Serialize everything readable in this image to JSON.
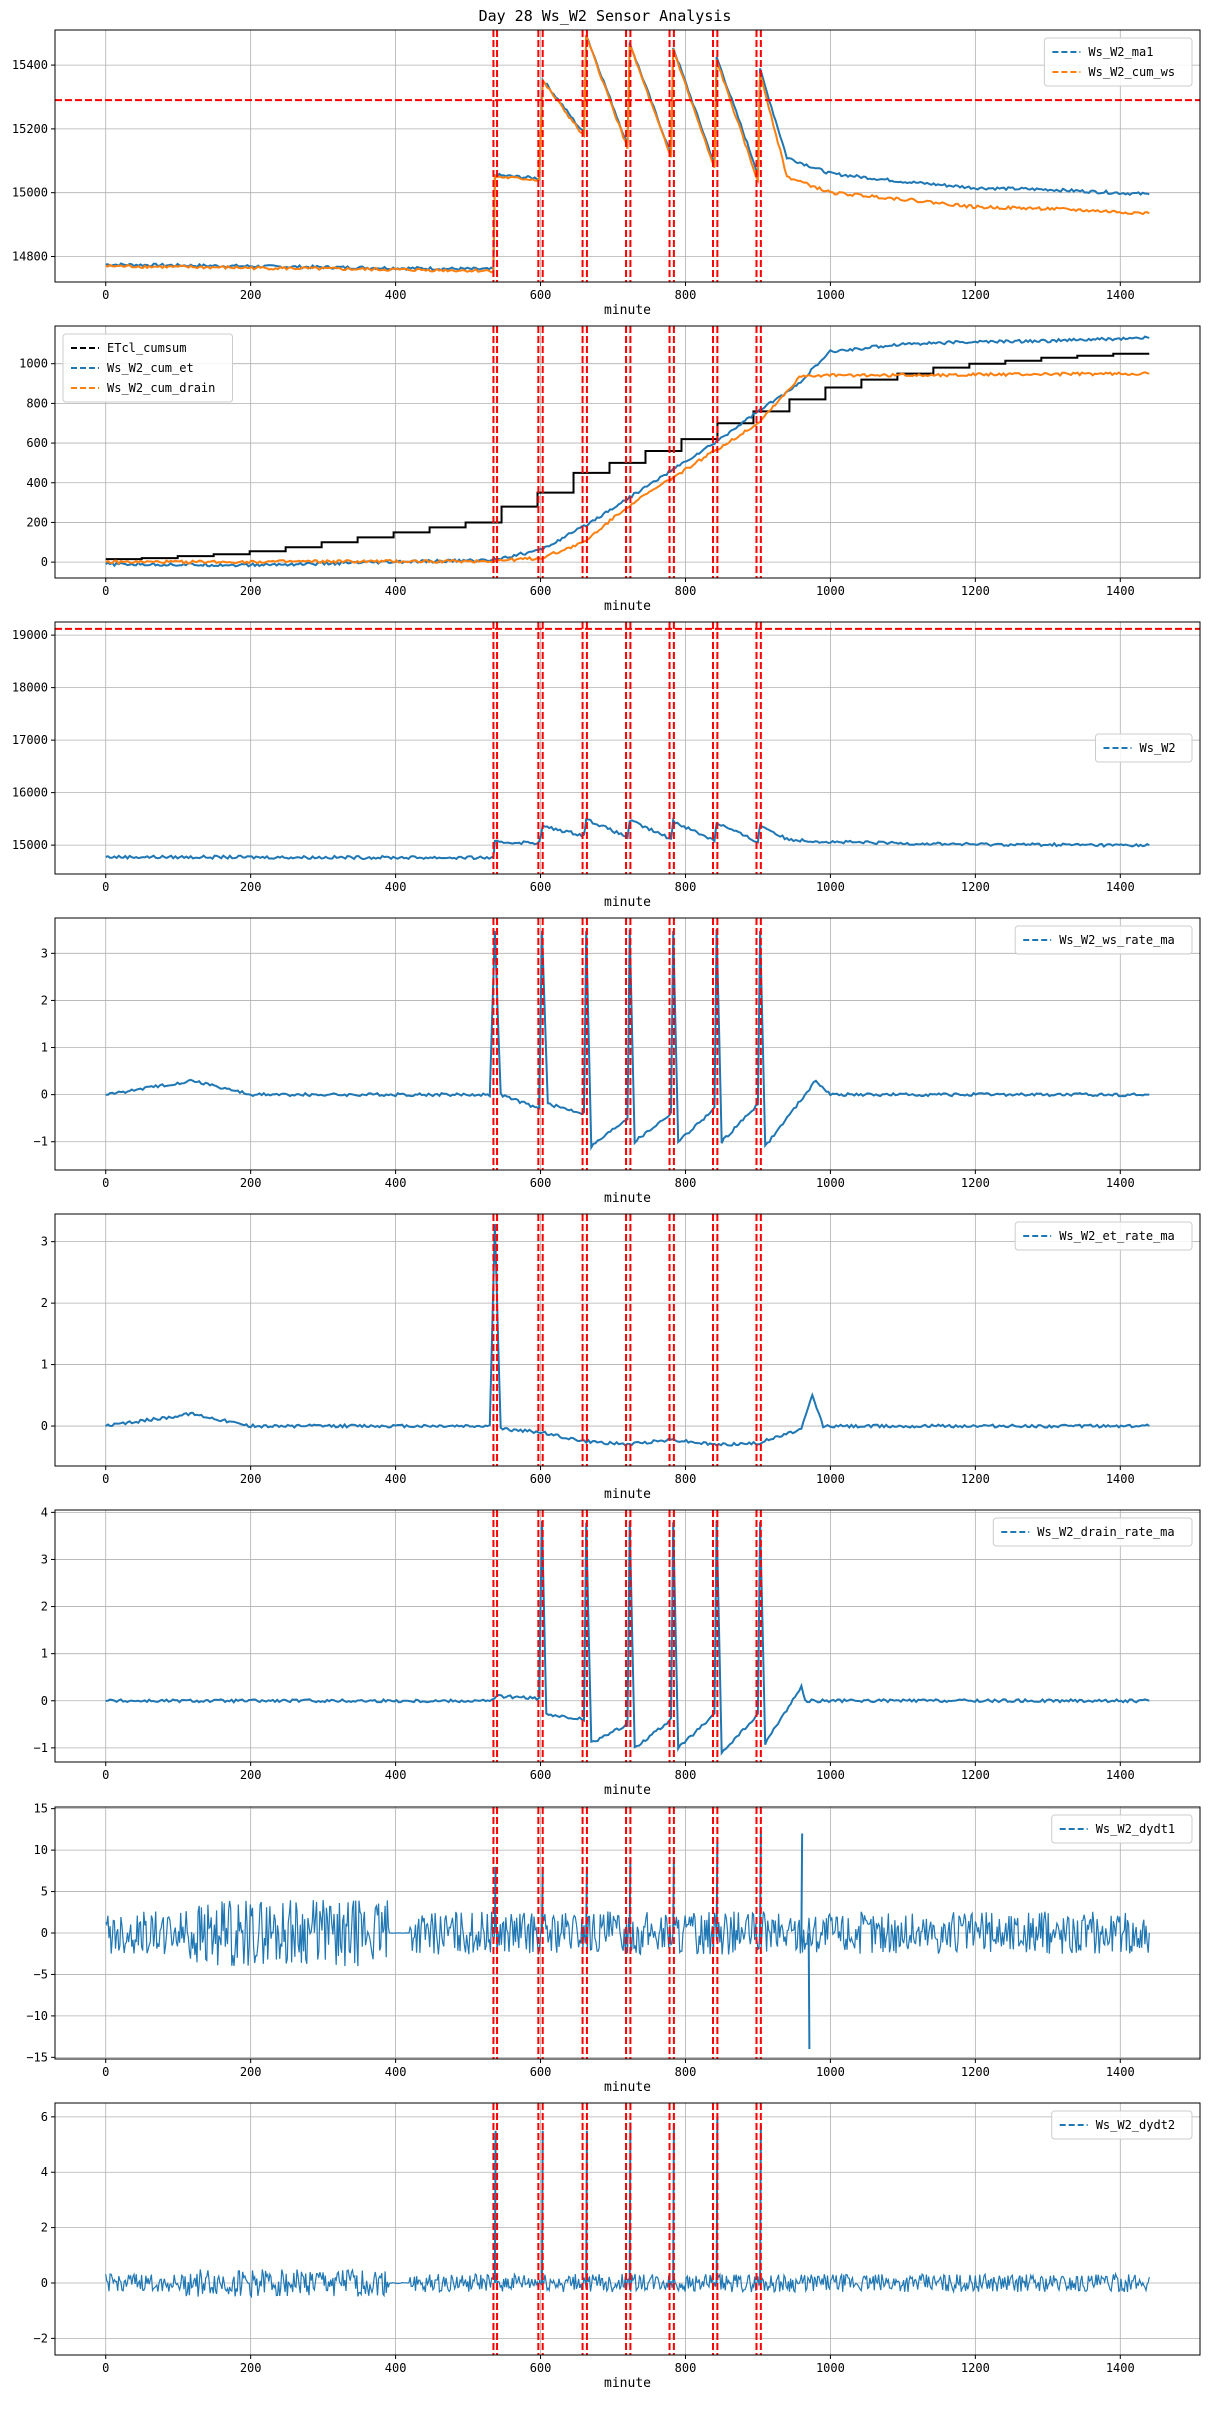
{
  "figure": {
    "title": "Day 28 Ws_W2 Sensor Analysis"
  },
  "chart_data": [
    {
      "type": "line",
      "xlabel": "minute",
      "xlim": [
        -70,
        1510
      ],
      "ylim": [
        14720,
        15510
      ],
      "x_ticks": [
        0,
        200,
        400,
        600,
        800,
        1000,
        1200,
        1400
      ],
      "y_ticks": [
        14800,
        15000,
        15200,
        15400
      ],
      "grid": true,
      "legend": "top-right",
      "series": [
        {
          "name": "Ws_W2_ma1",
          "color": "#1f77b4",
          "points": [
            [
              0,
              14775
            ],
            [
              535,
              14760
            ],
            [
              537,
              15055
            ],
            [
              598,
              15045
            ],
            [
              603,
              15355
            ],
            [
              660,
              15185
            ],
            [
              663,
              15495
            ],
            [
              720,
              15150
            ],
            [
              723,
              15470
            ],
            [
              780,
              15120
            ],
            [
              783,
              15455
            ],
            [
              840,
              15090
            ],
            [
              843,
              15425
            ],
            [
              900,
              15060
            ],
            [
              903,
              15385
            ],
            [
              940,
              15110
            ],
            [
              1000,
              15060
            ],
            [
              1100,
              15035
            ],
            [
              1200,
              15015
            ],
            [
              1300,
              15010
            ],
            [
              1440,
              14995
            ]
          ]
        },
        {
          "name": "Ws_W2_cum_ws",
          "color": "#ff7f0e",
          "points": [
            [
              0,
              14770
            ],
            [
              535,
              14755
            ],
            [
              537,
              15050
            ],
            [
              598,
              15040
            ],
            [
              603,
              15350
            ],
            [
              660,
              15175
            ],
            [
              663,
              15490
            ],
            [
              720,
              15140
            ],
            [
              723,
              15465
            ],
            [
              780,
              15110
            ],
            [
              783,
              15450
            ],
            [
              840,
              15075
            ],
            [
              843,
              15415
            ],
            [
              900,
              15035
            ],
            [
              903,
              15375
            ],
            [
              940,
              15050
            ],
            [
              1000,
              15000
            ],
            [
              1100,
              14980
            ],
            [
              1200,
              14955
            ],
            [
              1300,
              14950
            ],
            [
              1440,
              14935
            ]
          ]
        }
      ],
      "reference_hline": 15290
    },
    {
      "type": "line",
      "xlabel": "minute",
      "xlim": [
        -70,
        1510
      ],
      "ylim": [
        -80,
        1190
      ],
      "x_ticks": [
        0,
        200,
        400,
        600,
        800,
        1000,
        1200,
        1400
      ],
      "y_ticks": [
        0,
        200,
        400,
        600,
        800,
        1000
      ],
      "grid": true,
      "legend": "top-left",
      "series": [
        {
          "name": "ETcl_cumsum",
          "color": "#000000",
          "step_values": [
            15,
            20,
            30,
            40,
            55,
            75,
            100,
            125,
            150,
            175,
            200,
            280,
            350,
            450,
            500,
            560,
            620,
            700,
            760,
            820,
            880,
            920,
            950,
            980,
            1000,
            1015,
            1030,
            1040,
            1050
          ]
        },
        {
          "name": "Ws_W2_cum_et",
          "color": "#1f77b4",
          "points": [
            [
              0,
              -10
            ],
            [
              200,
              -15
            ],
            [
              400,
              0
            ],
            [
              530,
              10
            ],
            [
              600,
              60
            ],
            [
              660,
              180
            ],
            [
              720,
              320
            ],
            [
              780,
              460
            ],
            [
              840,
              600
            ],
            [
              900,
              760
            ],
            [
              950,
              880
            ],
            [
              1000,
              1060
            ],
            [
              1100,
              1100
            ],
            [
              1200,
              1110
            ],
            [
              1300,
              1115
            ],
            [
              1440,
              1130
            ]
          ]
        },
        {
          "name": "Ws_W2_cum_drain",
          "color": "#ff7f0e",
          "points": [
            [
              0,
              0
            ],
            [
              530,
              5
            ],
            [
              600,
              20
            ],
            [
              660,
              100
            ],
            [
              720,
              280
            ],
            [
              780,
              420
            ],
            [
              840,
              560
            ],
            [
              900,
              700
            ],
            [
              960,
              940
            ],
            [
              1440,
              950
            ]
          ]
        }
      ]
    },
    {
      "type": "line",
      "xlabel": "minute",
      "xlim": [
        -70,
        1510
      ],
      "ylim": [
        14450,
        19250
      ],
      "x_ticks": [
        0,
        200,
        400,
        600,
        800,
        1000,
        1200,
        1400
      ],
      "y_ticks": [
        15000,
        16000,
        17000,
        18000,
        19000
      ],
      "grid": true,
      "legend": "center-right",
      "series": [
        {
          "name": "Ws_W2",
          "color": "#1f77b4",
          "points": [
            [
              0,
              14775
            ],
            [
              535,
              14760
            ],
            [
              537,
              15055
            ],
            [
              598,
              15045
            ],
            [
              603,
              15355
            ],
            [
              660,
              15185
            ],
            [
              663,
              15495
            ],
            [
              720,
              15150
            ],
            [
              723,
              15470
            ],
            [
              780,
              15120
            ],
            [
              783,
              15455
            ],
            [
              840,
              15090
            ],
            [
              843,
              15425
            ],
            [
              900,
              15060
            ],
            [
              903,
              15385
            ],
            [
              940,
              15110
            ],
            [
              1000,
              15060
            ],
            [
              1100,
              15035
            ],
            [
              1200,
              15015
            ],
            [
              1300,
              15010
            ],
            [
              1440,
              14995
            ]
          ]
        }
      ],
      "reference_hline": 19120
    },
    {
      "type": "line",
      "xlabel": "minute",
      "xlim": [
        -70,
        1510
      ],
      "ylim": [
        -1.6,
        3.75
      ],
      "x_ticks": [
        0,
        200,
        400,
        600,
        800,
        1000,
        1200,
        1400
      ],
      "y_ticks": [
        -1,
        0,
        1,
        2,
        3
      ],
      "grid": true,
      "legend": "top-right",
      "series": [
        {
          "name": "Ws_W2_ws_rate_ma",
          "color": "#1f77b4",
          "points": [
            [
              0,
              0
            ],
            [
              120,
              0.3
            ],
            [
              200,
              0
            ],
            [
              390,
              0
            ],
            [
              400,
              0
            ],
            [
              530,
              0
            ],
            [
              537,
              3.5
            ],
            [
              545,
              0
            ],
            [
              598,
              -0.3
            ],
            [
              602,
              3.5
            ],
            [
              610,
              -0.2
            ],
            [
              660,
              -0.4
            ],
            [
              663,
              3.5
            ],
            [
              670,
              -1.1
            ],
            [
              720,
              -0.5
            ],
            [
              723,
              3.5
            ],
            [
              730,
              -1
            ],
            [
              780,
              -0.4
            ],
            [
              783,
              3.5
            ],
            [
              790,
              -1
            ],
            [
              840,
              -0.3
            ],
            [
              843,
              3.5
            ],
            [
              850,
              -1
            ],
            [
              900,
              -0.2
            ],
            [
              903,
              3.5
            ],
            [
              910,
              -1.1
            ],
            [
              980,
              0.3
            ],
            [
              1000,
              0
            ],
            [
              1440,
              0
            ]
          ]
        }
      ]
    },
    {
      "type": "line",
      "xlabel": "minute",
      "xlim": [
        -70,
        1510
      ],
      "ylim": [
        -0.65,
        3.45
      ],
      "x_ticks": [
        0,
        200,
        400,
        600,
        800,
        1000,
        1200,
        1400
      ],
      "y_ticks": [
        0,
        1,
        2,
        3
      ],
      "grid": true,
      "legend": "top-right",
      "series": [
        {
          "name": "Ws_W2_et_rate_ma",
          "color": "#1f77b4",
          "points": [
            [
              0,
              0
            ],
            [
              120,
              0.2
            ],
            [
              200,
              0
            ],
            [
              390,
              0
            ],
            [
              400,
              0
            ],
            [
              530,
              0
            ],
            [
              537,
              3.3
            ],
            [
              545,
              -0.05
            ],
            [
              600,
              -0.1
            ],
            [
              660,
              -0.25
            ],
            [
              720,
              -0.3
            ],
            [
              780,
              -0.22
            ],
            [
              840,
              -0.3
            ],
            [
              900,
              -0.28
            ],
            [
              960,
              -0.05
            ],
            [
              975,
              0.5
            ],
            [
              990,
              0
            ],
            [
              1440,
              0
            ]
          ]
        }
      ]
    },
    {
      "type": "line",
      "xlabel": "minute",
      "xlim": [
        -70,
        1510
      ],
      "ylim": [
        -1.3,
        4.05
      ],
      "x_ticks": [
        0,
        200,
        400,
        600,
        800,
        1000,
        1200,
        1400
      ],
      "y_ticks": [
        -1,
        0,
        1,
        2,
        3,
        4
      ],
      "grid": true,
      "legend": "top-right",
      "series": [
        {
          "name": "Ws_W2_drain_rate_ma",
          "color": "#1f77b4",
          "points": [
            [
              0,
              0
            ],
            [
              530,
              0
            ],
            [
              540,
              0.1
            ],
            [
              598,
              0.05
            ],
            [
              602,
              3.8
            ],
            [
              608,
              -0.3
            ],
            [
              660,
              -0.4
            ],
            [
              663,
              3.8
            ],
            [
              670,
              -0.9
            ],
            [
              720,
              -0.5
            ],
            [
              723,
              3.8
            ],
            [
              730,
              -1
            ],
            [
              780,
              -0.4
            ],
            [
              783,
              3.8
            ],
            [
              790,
              -1
            ],
            [
              840,
              -0.3
            ],
            [
              843,
              3.8
            ],
            [
              850,
              -1.1
            ],
            [
              900,
              -0.3
            ],
            [
              903,
              3.8
            ],
            [
              910,
              -0.9
            ],
            [
              960,
              0.3
            ],
            [
              965,
              0
            ],
            [
              1440,
              0
            ]
          ]
        }
      ]
    },
    {
      "type": "line",
      "xlabel": "minute",
      "xlim": [
        -70,
        1510
      ],
      "ylim": [
        -15.2,
        15.2
      ],
      "x_ticks": [
        0,
        200,
        400,
        600,
        800,
        1000,
        1200,
        1400
      ],
      "y_ticks": [
        -15,
        -10,
        -5,
        0,
        5,
        10,
        15
      ],
      "grid": true,
      "legend": "top-right",
      "series": [
        {
          "name": "Ws_W2_dydt1",
          "color": "#1f77b4",
          "noise_band": 4,
          "spikes": [
            [
              537,
              8
            ],
            [
              602,
              8
            ],
            [
              663,
              8
            ],
            [
              723,
              9
            ],
            [
              783,
              9
            ],
            [
              843,
              11
            ],
            [
              903,
              12
            ],
            [
              960,
              12
            ],
            [
              970,
              -14
            ]
          ]
        }
      ]
    },
    {
      "type": "line",
      "xlabel": "minute",
      "xlim": [
        -70,
        1510
      ],
      "ylim": [
        -2.6,
        6.5
      ],
      "x_ticks": [
        0,
        200,
        400,
        600,
        800,
        1000,
        1200,
        1400
      ],
      "y_ticks": [
        -2,
        0,
        2,
        4,
        6
      ],
      "grid": true,
      "legend": "top-right",
      "series": [
        {
          "name": "Ws_W2_dydt2",
          "color": "#1f77b4",
          "noise_band": 0.5,
          "spikes": [
            [
              537,
              5.5
            ],
            [
              602,
              5.5
            ],
            [
              663,
              5.5
            ],
            [
              723,
              5.8
            ],
            [
              783,
              5.7
            ],
            [
              843,
              6
            ],
            [
              903,
              5.7
            ]
          ]
        }
      ]
    }
  ],
  "event_lines": {
    "color": "#ff0000",
    "pairs": [
      [
        535,
        540
      ],
      [
        597,
        603
      ],
      [
        658,
        664
      ],
      [
        718,
        724
      ],
      [
        778,
        784
      ],
      [
        838,
        844
      ],
      [
        898,
        904
      ]
    ]
  }
}
